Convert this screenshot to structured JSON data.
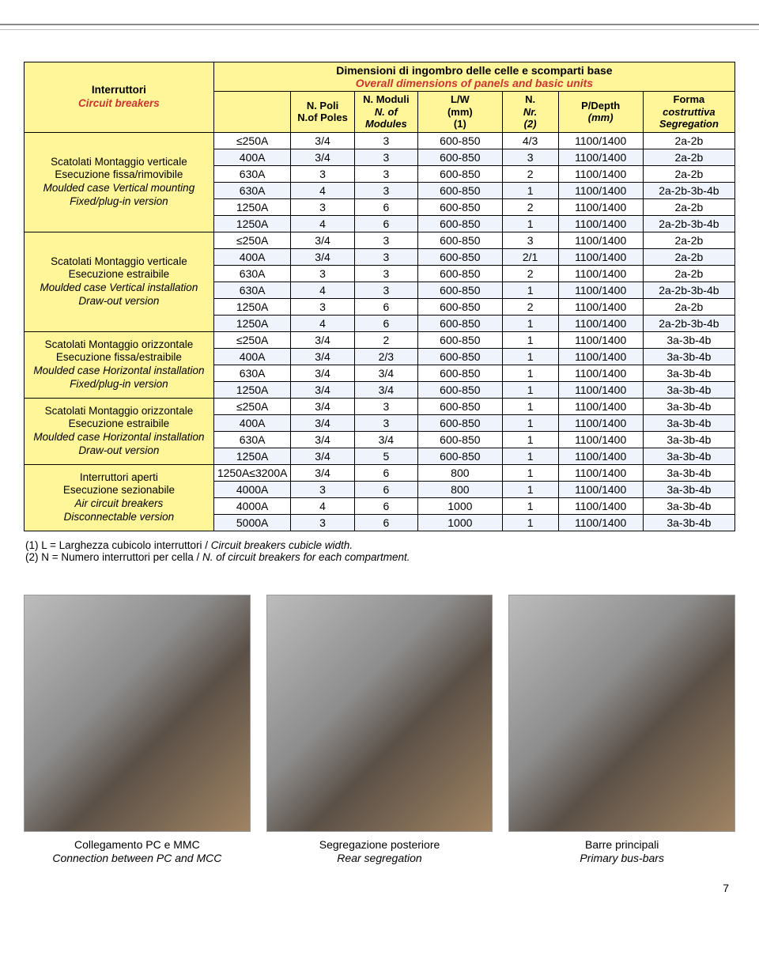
{
  "header": {
    "title_it": "Dimensioni di ingombro delle celle e scomparti base",
    "title_en": "Overall dimensions of panels and basic units",
    "rowhead_it": "Interruttori",
    "rowhead_en": "Circuit breakers",
    "cols": [
      {
        "it": "N. Poli",
        "en": "N.of Poles"
      },
      {
        "it": "N. Moduli",
        "en": "N. of Modules"
      },
      {
        "it": "L/W",
        "en": "(mm) (1)"
      },
      {
        "it": "N.",
        "en": "Nr. (2)"
      },
      {
        "it": "P/Depth",
        "en": "(mm)"
      },
      {
        "it": "Forma",
        "en": "costruttiva Segregation"
      }
    ]
  },
  "groups": [
    {
      "label_it1": "Scatolati Montaggio verticale",
      "label_it2": "Esecuzione fissa/rimovibile",
      "label_en1": "Moulded case Vertical mounting",
      "label_en2": "Fixed/plug-in version",
      "rows": [
        [
          "≤250A",
          "3/4",
          "3",
          "600-850",
          "4/3",
          "1100/1400",
          "2a-2b"
        ],
        [
          "400A",
          "3/4",
          "3",
          "600-850",
          "3",
          "1100/1400",
          "2a-2b"
        ],
        [
          "630A",
          "3",
          "3",
          "600-850",
          "2",
          "1100/1400",
          "2a-2b"
        ],
        [
          "630A",
          "4",
          "3",
          "600-850",
          "1",
          "1100/1400",
          "2a-2b-3b-4b"
        ],
        [
          "1250A",
          "3",
          "6",
          "600-850",
          "2",
          "1100/1400",
          "2a-2b"
        ],
        [
          "1250A",
          "4",
          "6",
          "600-850",
          "1",
          "1100/1400",
          "2a-2b-3b-4b"
        ]
      ]
    },
    {
      "label_it1": "Scatolati Montaggio verticale",
      "label_it2": "Esecuzione estraibile",
      "label_en1": "Moulded case Vertical installation",
      "label_en2": "Draw-out version",
      "rows": [
        [
          "≤250A",
          "3/4",
          "3",
          "600-850",
          "3",
          "1100/1400",
          "2a-2b"
        ],
        [
          "400A",
          "3/4",
          "3",
          "600-850",
          "2/1",
          "1100/1400",
          "2a-2b"
        ],
        [
          "630A",
          "3",
          "3",
          "600-850",
          "2",
          "1100/1400",
          "2a-2b"
        ],
        [
          "630A",
          "4",
          "3",
          "600-850",
          "1",
          "1100/1400",
          "2a-2b-3b-4b"
        ],
        [
          "1250A",
          "3",
          "6",
          "600-850",
          "2",
          "1100/1400",
          "2a-2b"
        ],
        [
          "1250A",
          "4",
          "6",
          "600-850",
          "1",
          "1100/1400",
          "2a-2b-3b-4b"
        ]
      ]
    },
    {
      "label_it1": "Scatolati Montaggio orizzontale",
      "label_it2": "Esecuzione fissa/estraibile",
      "label_en1": "Moulded case Horizontal installation",
      "label_en2": "Fixed/plug-in version",
      "rows": [
        [
          "≤250A",
          "3/4",
          "2",
          "600-850",
          "1",
          "1100/1400",
          "3a-3b-4b"
        ],
        [
          "400A",
          "3/4",
          "2/3",
          "600-850",
          "1",
          "1100/1400",
          "3a-3b-4b"
        ],
        [
          "630A",
          "3/4",
          "3/4",
          "600-850",
          "1",
          "1100/1400",
          "3a-3b-4b"
        ],
        [
          "1250A",
          "3/4",
          "3/4",
          "600-850",
          "1",
          "1100/1400",
          "3a-3b-4b"
        ]
      ]
    },
    {
      "label_it1": "Scatolati Montaggio orizzontale",
      "label_it2": "Esecuzione estraibile",
      "label_en1": "Moulded case Horizontal installation",
      "label_en2": "Draw-out version",
      "rows": [
        [
          "≤250A",
          "3/4",
          "3",
          "600-850",
          "1",
          "1100/1400",
          "3a-3b-4b"
        ],
        [
          "400A",
          "3/4",
          "3",
          "600-850",
          "1",
          "1100/1400",
          "3a-3b-4b"
        ],
        [
          "630A",
          "3/4",
          "3/4",
          "600-850",
          "1",
          "1100/1400",
          "3a-3b-4b"
        ],
        [
          "1250A",
          "3/4",
          "5",
          "600-850",
          "1",
          "1100/1400",
          "3a-3b-4b"
        ]
      ]
    },
    {
      "label_it1": "Interruttori aperti",
      "label_it2": "Esecuzione sezionabile",
      "label_en1": "Air circuit breakers",
      "label_en2": "Disconnectable version",
      "rows": [
        [
          "1250A≤3200A",
          "3/4",
          "6",
          "800",
          "1",
          "1100/1400",
          "3a-3b-4b"
        ],
        [
          "4000A",
          "3",
          "6",
          "800",
          "1",
          "1100/1400",
          "3a-3b-4b"
        ],
        [
          "4000A",
          "4",
          "6",
          "1000",
          "1",
          "1100/1400",
          "3a-3b-4b"
        ],
        [
          "5000A",
          "3",
          "6",
          "1000",
          "1",
          "1100/1400",
          "3a-3b-4b"
        ]
      ]
    }
  ],
  "footnotes": {
    "l1_it": "(1) L = Larghezza cubicolo interruttori / ",
    "l1_en": "Circuit breakers cubicle width.",
    "l2_it": "(2) N = Numero interruttori per cella / ",
    "l2_en": "N. of circuit breakers for each compartment."
  },
  "photos": [
    {
      "cap_it": "Collegamento PC e MMC",
      "cap_en": "Connection between PC and MCC"
    },
    {
      "cap_it": "Segregazione posteriore",
      "cap_en": "Rear segregation"
    },
    {
      "cap_it": "Barre principali",
      "cap_en": "Primary bus-bars"
    }
  ],
  "pagenum": "7",
  "style": {
    "hdr_bg": "#fff699",
    "alt_bg": "#eff3fc",
    "col_widths_pct": [
      27,
      10,
      9,
      9,
      12,
      8,
      12,
      13
    ]
  }
}
